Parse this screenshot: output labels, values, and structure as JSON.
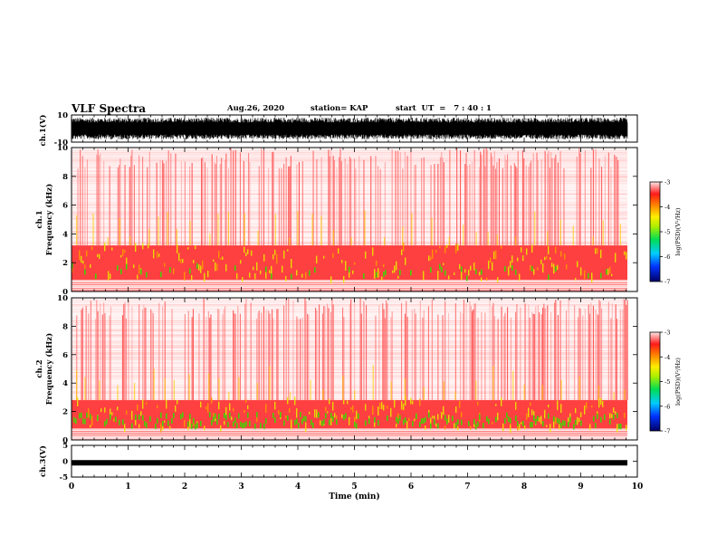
{
  "header": {
    "title": "VLF Spectra",
    "date": "Aug.26, 2020",
    "station": "station= KAP",
    "start": "start  UT  =   7 : 40 : 1"
  },
  "colors": {
    "red": "#ff2a2a",
    "yellow": "#e8e800",
    "green": "#33dd00",
    "navy": "#000066"
  },
  "chart_data": [
    {
      "type": "line",
      "panel": "ch.1 waveform",
      "ylabel": "ch.1(V)",
      "ylim": [
        -10,
        10
      ],
      "yticks": [
        10,
        -10
      ],
      "x_range_min": [
        0,
        9.8
      ],
      "description_values": {
        "typical_amplitude_V": [
          -8,
          8
        ]
      }
    },
    {
      "type": "heatmap",
      "panel": "ch.1 spectrogram",
      "ylabel": "ch.1 Frequency (kHz)",
      "ylim": [
        0,
        10
      ],
      "yticks": [
        0,
        2,
        4,
        6,
        8,
        10
      ],
      "colorbar": {
        "label": "log(PSD)(V²/Hz)",
        "range": [
          -7,
          -3
        ],
        "ticks": [
          -3,
          -4,
          -5,
          -6,
          -7
        ]
      },
      "dominant_band_kHz": [
        0.8,
        3.2
      ]
    },
    {
      "type": "heatmap",
      "panel": "ch.2 spectrogram",
      "ylabel": "ch.2 Frequency (kHz)",
      "ylim": [
        0,
        10
      ],
      "yticks": [
        0,
        2,
        4,
        6,
        8,
        10
      ],
      "colorbar": {
        "label": "log(PSD)(V²/Hz)",
        "range": [
          -7,
          -3
        ],
        "ticks": [
          -3,
          -4,
          -5,
          -6,
          -7
        ]
      },
      "dominant_band_kHz": [
        0.8,
        2.8
      ]
    },
    {
      "type": "line",
      "panel": "ch.3 waveform",
      "ylabel": "ch.3(V)",
      "ylim": [
        -5,
        5
      ],
      "yticks": [
        5,
        0,
        -5
      ],
      "typical_level_V": -0.5
    }
  ],
  "xaxis": {
    "label": "Time  (min)",
    "range": [
      0,
      10
    ],
    "ticks": [
      "0",
      "1",
      "2",
      "3",
      "4",
      "5",
      "6",
      "7",
      "8",
      "9",
      "10"
    ]
  }
}
